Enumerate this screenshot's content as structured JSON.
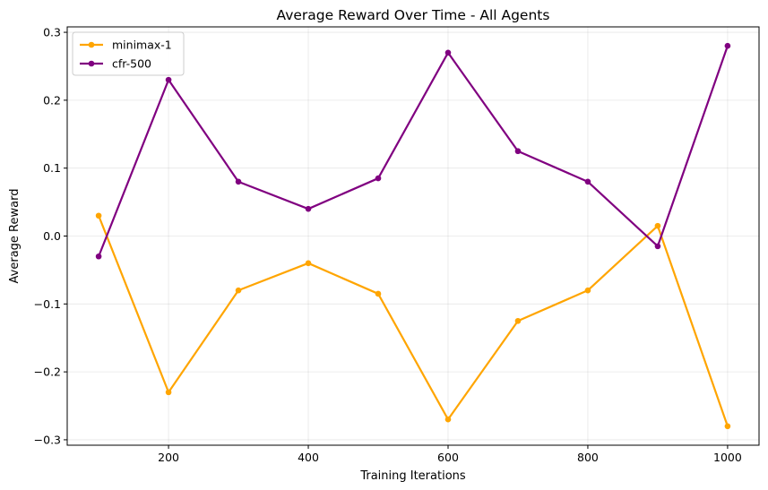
{
  "chart_data": {
    "type": "line",
    "title": "Average Reward Over Time - All Agents",
    "xlabel": "Training Iterations",
    "ylabel": "Average Reward",
    "x": [
      100,
      200,
      300,
      400,
      500,
      600,
      700,
      800,
      900,
      1000
    ],
    "xlim": [
      55,
      1045
    ],
    "ylim": [
      -0.308,
      0.308
    ],
    "xticks": [
      200,
      400,
      600,
      800,
      1000
    ],
    "xtick_labels": [
      "200",
      "400",
      "600",
      "800",
      "1000"
    ],
    "yticks": [
      -0.3,
      -0.2,
      -0.1,
      0.0,
      0.1,
      0.2,
      0.3
    ],
    "ytick_labels": [
      "−0.3",
      "−0.2",
      "−0.1",
      "0.0",
      "0.1",
      "0.2",
      "0.3"
    ],
    "grid": true,
    "legend_position": "upper-left",
    "series": [
      {
        "name": "minimax-1",
        "color": "#FFA500",
        "marker": "circle",
        "values": [
          0.03,
          -0.23,
          -0.08,
          -0.04,
          -0.085,
          -0.27,
          -0.125,
          -0.08,
          0.015,
          -0.28
        ]
      },
      {
        "name": "cfr-500",
        "color": "#800080",
        "marker": "circle",
        "values": [
          -0.03,
          0.23,
          0.08,
          0.04,
          0.085,
          0.27,
          0.125,
          0.08,
          -0.015,
          0.28
        ]
      }
    ]
  }
}
